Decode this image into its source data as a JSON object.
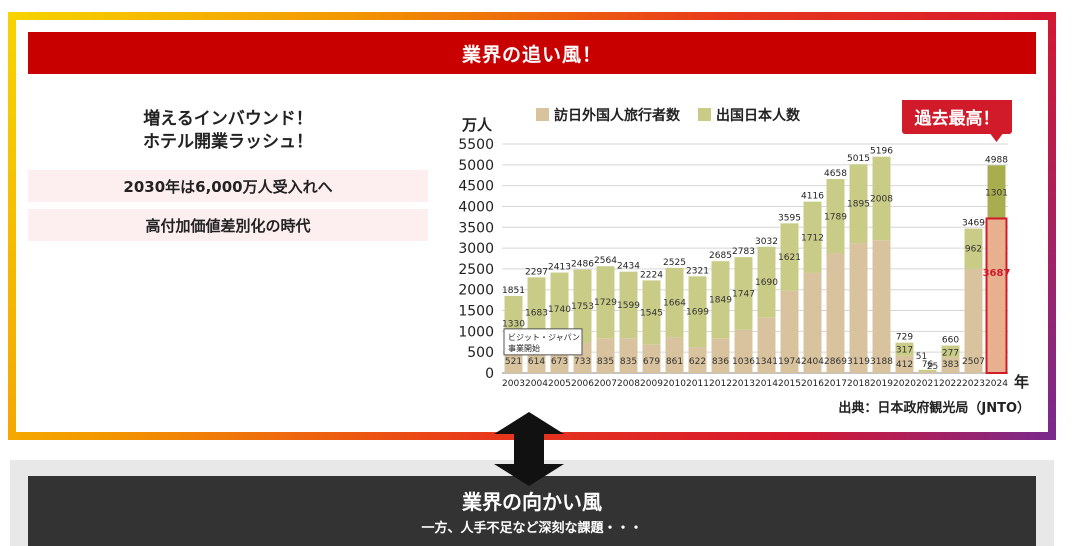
{
  "header": {
    "title": "業界の追い風！"
  },
  "left": {
    "headline1": "増えるインバウンド！",
    "headline2": "ホテル開業ラッシュ！",
    "point1": "2030年は6,000万人受入れへ",
    "point2": "高付加価値差別化の時代"
  },
  "footer": {
    "title": "業界の向かい風",
    "subtitle": "一方、人手不足など深刻な課題・・・"
  },
  "colors": {
    "banner": "#c80000",
    "inbound": "#d8c39e",
    "outbound": "#c9cc86",
    "highlight": "#d11a2a"
  },
  "chart_data": {
    "type": "bar",
    "stacked": true,
    "unit_label": "万人",
    "x_unit_label": "年",
    "categories": [
      "2003",
      "2004",
      "2005",
      "2006",
      "2007",
      "2008",
      "2009",
      "2010",
      "2011",
      "2012",
      "2013",
      "2014",
      "2015",
      "2016",
      "2017",
      "2018",
      "2019",
      "2020",
      "2021",
      "2022",
      "2023",
      "2024"
    ],
    "series": [
      {
        "name": "訪日外国人旅行者数",
        "values": [
          521,
          614,
          673,
          733,
          835,
          835,
          679,
          861,
          622,
          836,
          1036,
          1341,
          1974,
          2404,
          2869,
          3119,
          3188,
          412,
          25,
          383,
          2507,
          3687
        ]
      },
      {
        "name": "出国日本人数",
        "values": [
          1330,
          1683,
          1740,
          1753,
          1729,
          1599,
          1545,
          1664,
          1699,
          1849,
          1747,
          1690,
          1621,
          1712,
          1789,
          1895,
          2008,
          317,
          51,
          277,
          962,
          1301
        ]
      }
    ],
    "totals": [
      "1851",
      "2297",
      "2413",
      "2486",
      "2564",
      "2434",
      "2224",
      "2525",
      "2321",
      "2685",
      "2783",
      "3032",
      "3595",
      "4116",
      "4658",
      "5015",
      "5196",
      "729",
      "76",
      "660",
      "3469",
      "4988"
    ],
    "yticks": [
      0,
      500,
      1000,
      1500,
      2000,
      2500,
      3000,
      3500,
      4000,
      4500,
      5000,
      5500
    ],
    "ylim": [
      0,
      5500
    ],
    "annotation": "ビジット・ジャパン\n事業開始",
    "callout": "過去最高！",
    "source": "出典：日本政府観光局（JNTO）"
  }
}
